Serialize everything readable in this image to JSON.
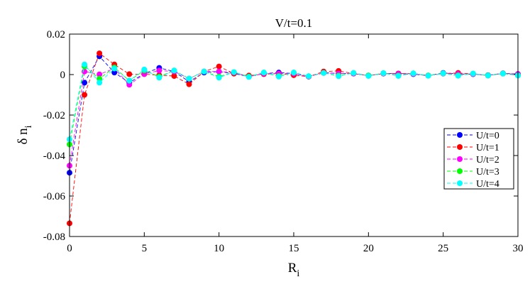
{
  "chart_data": {
    "type": "line",
    "title": "V/t=0.1",
    "xlabel": "R",
    "xlabel_sub": "i",
    "ylabel": "δ n",
    "ylabel_sub": "i",
    "xlim": [
      0,
      30
    ],
    "ylim": [
      -0.08,
      0.02
    ],
    "xticks": [
      0,
      5,
      10,
      15,
      20,
      25,
      30
    ],
    "xtick_labels": [
      "0",
      "5",
      "10",
      "15",
      "20",
      "25",
      "30"
    ],
    "yticks": [
      -0.08,
      -0.06,
      -0.04,
      -0.02,
      0,
      0.02
    ],
    "ytick_labels": [
      "-0.08",
      "-0.06",
      "-0.04",
      "-0.02",
      "0",
      "0.02"
    ],
    "grid": false,
    "legend_position": "right",
    "x": [
      0,
      1,
      2,
      3,
      4,
      5,
      6,
      7,
      8,
      9,
      10,
      11,
      12,
      13,
      14,
      15,
      16,
      17,
      18,
      19,
      20,
      21,
      22,
      23,
      24,
      25,
      26,
      27,
      28,
      29,
      30
    ],
    "series": [
      {
        "name": "U/t=0",
        "color": "#0000ff",
        "values": [
          -0.0485,
          -0.004,
          0.009,
          0.001,
          -0.004,
          0.0005,
          0.0033,
          0.0015,
          -0.0035,
          0.001,
          0.0015,
          0.0005,
          -0.001,
          0.0005,
          0.001,
          0.0005,
          -0.001,
          0.001,
          0.0005,
          0.0005,
          -0.0005,
          0.0005,
          0.0005,
          0.0002,
          -0.0005,
          0.0008,
          0.0003,
          0.0002,
          -0.0003,
          0.0006,
          0.0003
        ]
      },
      {
        "name": "U/t=1",
        "color": "#ff0000",
        "values": [
          -0.0735,
          -0.01,
          0.0105,
          0.005,
          0.0002,
          0.0002,
          -0.0003,
          -0.0007,
          -0.0048,
          0.0015,
          0.004,
          0.0005,
          -0.0005,
          0.0002,
          0.0005,
          -0.0003,
          -0.001,
          0.0015,
          0.0018,
          0.0005,
          -0.0005,
          0.0005,
          0.0005,
          0.0005,
          -0.0005,
          0.0005,
          0.0008,
          0.0003,
          -0.0005,
          0.0005,
          0.0001
        ]
      },
      {
        "name": "U/t=2",
        "color": "#ff00ff",
        "values": [
          -0.045,
          0.0015,
          0.0001,
          0.003,
          -0.005,
          0.0003,
          0.002,
          0.0015,
          -0.002,
          0.0015,
          0.0015,
          0.001,
          -0.001,
          0.0005,
          0.0005,
          0.0005,
          -0.001,
          0.0008,
          0.0005,
          0.0005,
          -0.0005,
          0.0005,
          0.0003,
          0.0003,
          -0.0005,
          0.0005,
          0.0003,
          0.0002,
          -0.0003,
          0.0005,
          0.0002
        ]
      },
      {
        "name": "U/t=3",
        "color": "#00ff00",
        "values": [
          -0.0345,
          0.004,
          -0.002,
          0.0035,
          -0.003,
          0.002,
          -0.001,
          0.002,
          -0.002,
          0.0015,
          -0.001,
          0.0012,
          -0.001,
          0.001,
          -0.0007,
          0.001,
          -0.0008,
          0.0008,
          -0.0005,
          0.0008,
          -0.0005,
          0.0007,
          -0.0005,
          0.0006,
          -0.0005,
          0.0006,
          -0.0004,
          0.0005,
          -0.0004,
          0.0005,
          -0.0004
        ]
      },
      {
        "name": "U/t=4",
        "color": "#00ffff",
        "values": [
          -0.032,
          0.005,
          -0.004,
          0.003,
          -0.003,
          0.0025,
          -0.0015,
          0.002,
          -0.002,
          0.0015,
          -0.0015,
          0.0012,
          -0.0012,
          0.001,
          -0.001,
          0.001,
          -0.0008,
          0.0008,
          -0.0008,
          0.0008,
          -0.0007,
          0.0007,
          -0.0007,
          0.0006,
          -0.0006,
          0.0006,
          -0.0006,
          0.0005,
          -0.0005,
          0.0005,
          -0.0005
        ]
      }
    ]
  }
}
